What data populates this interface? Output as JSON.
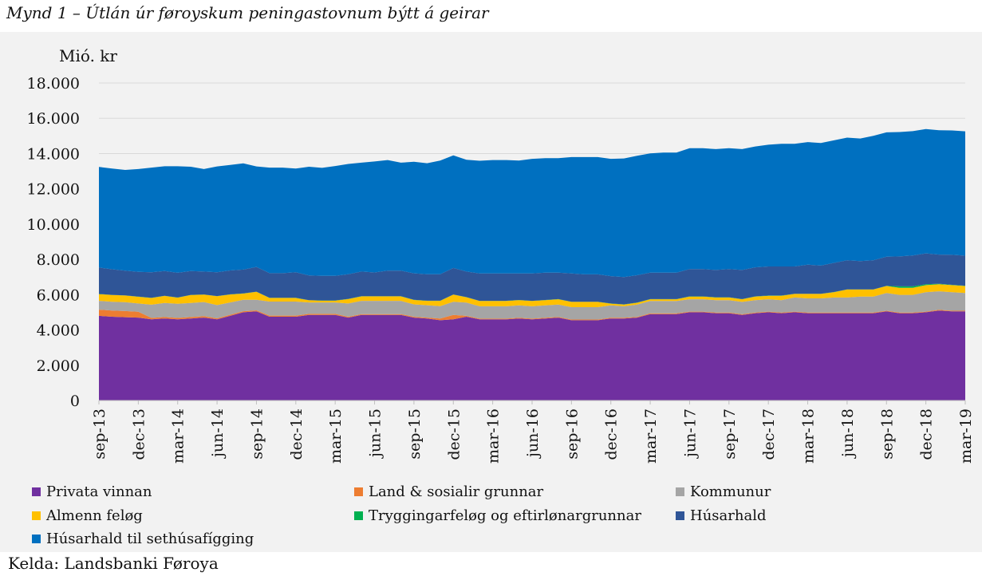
{
  "title": "Mynd 1 – Útlán úr føroyskum peningastovnum býtt á geirar",
  "source": "Kelda: Landsbanki Føroya",
  "chart_data": {
    "type": "area",
    "stacked": true,
    "ylabel": "Mió. kr",
    "ylim": [
      0,
      18000
    ],
    "ytick_values": [
      0,
      2000,
      4000,
      6000,
      8000,
      10000,
      12000,
      14000,
      16000,
      18000
    ],
    "ytick_labels": [
      "0",
      "2.000",
      "4.000",
      "6.000",
      "8.000",
      "10.000",
      "12.000",
      "14.000",
      "16.000",
      "18.000"
    ],
    "grid": true,
    "legend_position": "bottom",
    "x": [
      "sep-13",
      "okt-13",
      "nov-13",
      "dec-13",
      "jan-14",
      "feb-14",
      "mar-14",
      "apr-14",
      "mai-14",
      "jun-14",
      "jul-14",
      "aug-14",
      "sep-14",
      "okt-14",
      "nov-14",
      "dec-14",
      "jan-15",
      "feb-15",
      "mar-15",
      "apr-15",
      "mai-15",
      "jun-15",
      "jul-15",
      "aug-15",
      "sep-15",
      "okt-15",
      "nov-15",
      "dec-15",
      "jan-16",
      "feb-16",
      "mar-16",
      "apr-16",
      "mai-16",
      "jun-16",
      "jul-16",
      "aug-16",
      "sep-16",
      "okt-16",
      "nov-16",
      "dec-16",
      "jan-17",
      "feb-17",
      "mar-17",
      "apr-17",
      "mai-17",
      "jun-17",
      "jul-17",
      "aug-17",
      "sep-17",
      "okt-17",
      "nov-17",
      "dec-17",
      "jan-18",
      "feb-18",
      "mar-18",
      "apr-18",
      "mai-18",
      "jun-18",
      "jul-18",
      "aug-18",
      "sep-18",
      "okt-18",
      "nov-18",
      "dec-18",
      "jan-19",
      "feb-19",
      "mar-19"
    ],
    "x_tick_labels": [
      "sep-13",
      "dec-13",
      "mar-14",
      "jun-14",
      "sep-14",
      "dec-14",
      "mar-15",
      "jun-15",
      "sep-15",
      "dec-15",
      "mar-16",
      "jun-16",
      "sep-16",
      "dec-16",
      "mar-17",
      "jun-17",
      "sep-17",
      "dec-17",
      "mar-18",
      "jun-18",
      "sep-18",
      "dec-18",
      "mar-19"
    ],
    "series": [
      {
        "name": "Privata vinnan",
        "color": "#7030a0",
        "values": [
          4800,
          4750,
          4720,
          4700,
          4600,
          4650,
          4600,
          4650,
          4700,
          4600,
          4800,
          5000,
          5050,
          4750,
          4750,
          4750,
          4850,
          4850,
          4850,
          4700,
          4850,
          4850,
          4850,
          4850,
          4700,
          4650,
          4550,
          4600,
          4750,
          4600,
          4600,
          4600,
          4650,
          4600,
          4650,
          4700,
          4550,
          4550,
          4550,
          4650,
          4650,
          4700,
          4900,
          4900,
          4900,
          5000,
          5000,
          4950,
          4950,
          4850,
          4950,
          5000,
          4950,
          5000,
          4950,
          4950,
          4950,
          4950,
          4950,
          4950,
          5050,
          4950,
          4950,
          5000,
          5100,
          5050,
          5050
        ]
      },
      {
        "name": "Land & sosialir grunnar",
        "color": "#ed7d31",
        "values": [
          350,
          350,
          350,
          330,
          80,
          80,
          80,
          80,
          80,
          60,
          60,
          60,
          60,
          60,
          60,
          60,
          60,
          60,
          60,
          50,
          50,
          50,
          50,
          50,
          50,
          50,
          100,
          250,
          50,
          40,
          40,
          40,
          40,
          40,
          40,
          40,
          40,
          40,
          40,
          40,
          40,
          40,
          40,
          40,
          40,
          40,
          40,
          40,
          40,
          40,
          40,
          40,
          40,
          40,
          40,
          40,
          40,
          40,
          40,
          40,
          40,
          40,
          40,
          40,
          40,
          40,
          40
        ]
      },
      {
        "name": "Kommunur",
        "color": "#a5a5a5",
        "values": [
          500,
          500,
          500,
          470,
          750,
          800,
          800,
          800,
          800,
          750,
          700,
          650,
          600,
          800,
          800,
          800,
          650,
          650,
          650,
          750,
          750,
          750,
          750,
          750,
          700,
          700,
          700,
          750,
          750,
          700,
          700,
          700,
          700,
          700,
          700,
          700,
          700,
          700,
          700,
          700,
          650,
          700,
          700,
          700,
          700,
          700,
          700,
          700,
          700,
          700,
          700,
          700,
          700,
          800,
          800,
          800,
          850,
          850,
          900,
          900,
          1000,
          1000,
          1000,
          1100,
          1050,
          1050,
          1000
        ]
      },
      {
        "name": "Almenn feløg",
        "color": "#ffc000",
        "values": [
          380,
          380,
          380,
          380,
          380,
          400,
          350,
          450,
          420,
          500,
          450,
          350,
          450,
          200,
          200,
          200,
          120,
          100,
          100,
          250,
          250,
          250,
          250,
          250,
          250,
          250,
          300,
          400,
          300,
          300,
          300,
          300,
          300,
          300,
          300,
          300,
          300,
          300,
          300,
          100,
          100,
          100,
          100,
          100,
          100,
          150,
          150,
          150,
          150,
          150,
          200,
          200,
          250,
          200,
          250,
          250,
          300,
          450,
          400,
          400,
          400,
          400,
          400,
          400,
          400,
          400,
          400
        ]
      },
      {
        "name": "Tryggingarfeløg og eftirlønargrunnar",
        "color": "#00b050",
        "values": [
          10,
          10,
          10,
          10,
          10,
          10,
          10,
          10,
          10,
          10,
          10,
          10,
          10,
          10,
          10,
          10,
          10,
          10,
          10,
          10,
          10,
          10,
          10,
          10,
          10,
          10,
          10,
          10,
          10,
          10,
          10,
          10,
          10,
          10,
          10,
          10,
          10,
          10,
          10,
          10,
          10,
          10,
          10,
          10,
          10,
          10,
          10,
          10,
          10,
          10,
          10,
          10,
          10,
          10,
          10,
          10,
          10,
          10,
          10,
          10,
          10,
          80,
          80,
          50,
          30,
          20,
          20
        ]
      },
      {
        "name": "Húsarhald",
        "color": "#2f5597",
        "values": [
          1500,
          1450,
          1400,
          1400,
          1450,
          1400,
          1400,
          1350,
          1300,
          1350,
          1350,
          1350,
          1400,
          1400,
          1400,
          1450,
          1400,
          1400,
          1400,
          1400,
          1400,
          1350,
          1450,
          1450,
          1500,
          1500,
          1500,
          1500,
          1450,
          1550,
          1550,
          1550,
          1500,
          1550,
          1550,
          1500,
          1600,
          1550,
          1550,
          1550,
          1550,
          1550,
          1500,
          1500,
          1500,
          1550,
          1550,
          1550,
          1600,
          1650,
          1650,
          1650,
          1650,
          1550,
          1650,
          1600,
          1650,
          1650,
          1600,
          1650,
          1650,
          1700,
          1750,
          1750,
          1650,
          1700,
          1700
        ]
      },
      {
        "name": "Húsarhald til sethúsafígging",
        "color": "#0070c0",
        "values": [
          5700,
          5710,
          5710,
          5830,
          5930,
          5940,
          6040,
          5910,
          5810,
          6000,
          5980,
          6020,
          5700,
          5980,
          5980,
          5880,
          6160,
          6120,
          6220,
          6250,
          6170,
          6290,
          6270,
          6120,
          6320,
          6290,
          6440,
          6390,
          6340,
          6390,
          6430,
          6430,
          6400,
          6500,
          6490,
          6490,
          6600,
          6650,
          6650,
          6650,
          6720,
          6770,
          6760,
          6800,
          6800,
          6850,
          6850,
          6850,
          6850,
          6850,
          6850,
          6900,
          6950,
          6950,
          6950,
          6950,
          6950,
          6950,
          6950,
          7050,
          7050,
          7050,
          7050,
          7050,
          7050,
          7050,
          7050
        ]
      }
    ]
  }
}
